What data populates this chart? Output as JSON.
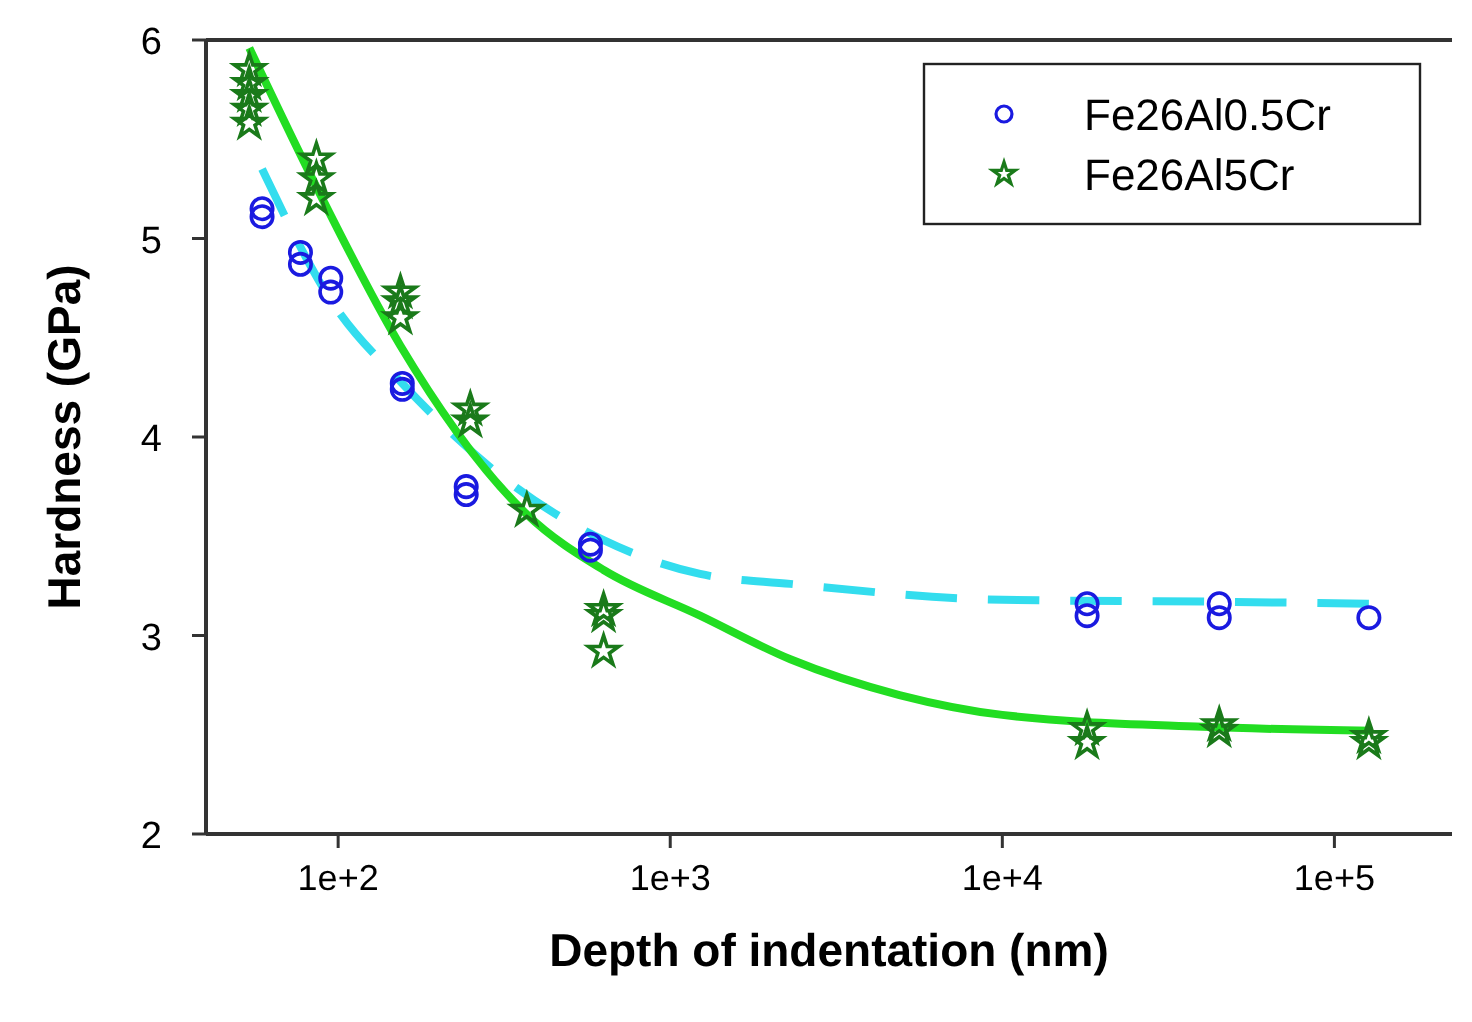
{
  "chart_data": {
    "type": "scatter",
    "xlabel": "Depth of indentation (nm)",
    "ylabel": "Hardness (GPa)",
    "log": "x",
    "xlim": [
      40,
      226000
    ],
    "xticks": [
      {
        "value": 100,
        "label": "1e+2"
      },
      {
        "value": 1000,
        "label": "1e+3"
      },
      {
        "value": 10000,
        "label": "1e+4"
      },
      {
        "value": 100000,
        "label": "1e+5"
      }
    ],
    "ylim": [
      2,
      6
    ],
    "yticks": [
      2,
      3,
      4,
      5,
      6
    ],
    "grid": false,
    "legend": "top right",
    "series": [
      {
        "type": "line",
        "color": "#33ddee",
        "line_style": "dashed",
        "marker": "none",
        "x": [
          59,
          95,
          156,
          306,
          630,
          1230,
          2300,
          10000,
          45000,
          127000
        ],
        "values": [
          5.35,
          4.69,
          4.27,
          3.81,
          3.48,
          3.31,
          3.26,
          3.18,
          3.17,
          3.16
        ]
      },
      {
        "type": "line",
        "color": "#22dd22",
        "line_style": "solid",
        "marker": "none",
        "x": [
          54,
          86,
          154,
          370,
          630,
          1230,
          2300,
          4900,
          10000,
          40000,
          130000
        ],
        "values": [
          5.96,
          5.26,
          4.46,
          3.61,
          3.33,
          3.1,
          2.88,
          2.7,
          2.6,
          2.54,
          2.52
        ]
      },
      {
        "name": "Fe26Al0.5Cr",
        "color": "#1a1ae0",
        "marker": "circle",
        "x": [
          59,
          59,
          77,
          77,
          95,
          95,
          156,
          156,
          243,
          243,
          575,
          575,
          18000,
          18000,
          45000,
          45000,
          127000
        ],
        "values": [
          5.15,
          5.11,
          4.93,
          4.87,
          4.8,
          4.73,
          4.27,
          4.24,
          3.75,
          3.71,
          3.46,
          3.43,
          3.16,
          3.1,
          3.16,
          3.09,
          3.09
        ]
      },
      {
        "name": "Fe26Al5Cr",
        "color": "#1a7a1a",
        "marker": "star",
        "x": [
          54,
          54,
          54,
          54,
          54,
          86,
          86,
          86,
          154,
          154,
          154,
          250,
          250,
          370,
          630,
          630,
          630,
          18000,
          18000,
          45000,
          45000,
          127000,
          127000
        ],
        "values": [
          5.85,
          5.78,
          5.72,
          5.65,
          5.58,
          5.4,
          5.3,
          5.2,
          4.73,
          4.68,
          4.6,
          4.14,
          4.08,
          3.63,
          3.13,
          3.1,
          2.92,
          2.53,
          2.46,
          2.55,
          2.52,
          2.49,
          2.46
        ]
      }
    ]
  }
}
